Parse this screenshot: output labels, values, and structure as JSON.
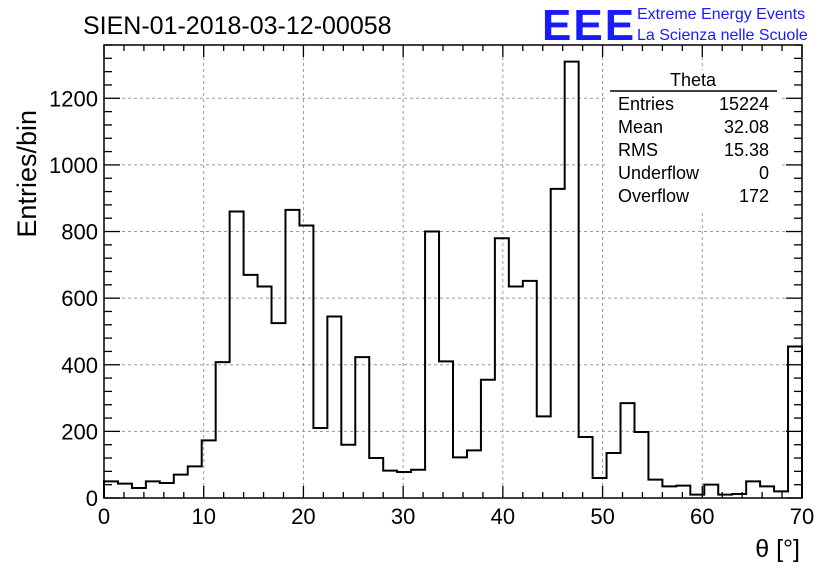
{
  "chart_data": {
    "type": "bar",
    "title": "SIEN-01-2018-03-12-00058",
    "xlabel": "θ [°]",
    "ylabel": "Entries/bin",
    "xlim": [
      0,
      70
    ],
    "ylim": [
      0,
      1360
    ],
    "x_ticks": [
      "0",
      "10",
      "20",
      "30",
      "40",
      "50",
      "60",
      "70"
    ],
    "y_ticks": [
      "0",
      "200",
      "400",
      "600",
      "800",
      "1000",
      "1200"
    ],
    "grid": true,
    "bin_width": 1.4,
    "values": [
      50,
      43,
      30,
      50,
      45,
      70,
      95,
      173,
      408,
      860,
      670,
      635,
      525,
      865,
      818,
      210,
      545,
      160,
      423,
      120,
      82,
      78,
      85,
      800,
      410,
      122,
      143,
      355,
      780,
      635,
      652,
      245,
      928,
      1310,
      183,
      60,
      135,
      285,
      198,
      55,
      35,
      37,
      10,
      40,
      10,
      12,
      50,
      35,
      20,
      455
    ]
  },
  "stats_box": {
    "title": "Theta",
    "rows": [
      {
        "label": "Entries",
        "value": "15224"
      },
      {
        "label": "Mean",
        "value": "32.08"
      },
      {
        "label": "RMS",
        "value": "15.38"
      },
      {
        "label": "Underflow",
        "value": "0"
      },
      {
        "label": "Overflow",
        "value": "172"
      }
    ]
  },
  "logo": {
    "mark": "EEE",
    "line1": "Extreme Energy Events",
    "line2": "La Scienza nelle Scuole",
    "color": "#1a1aff"
  }
}
